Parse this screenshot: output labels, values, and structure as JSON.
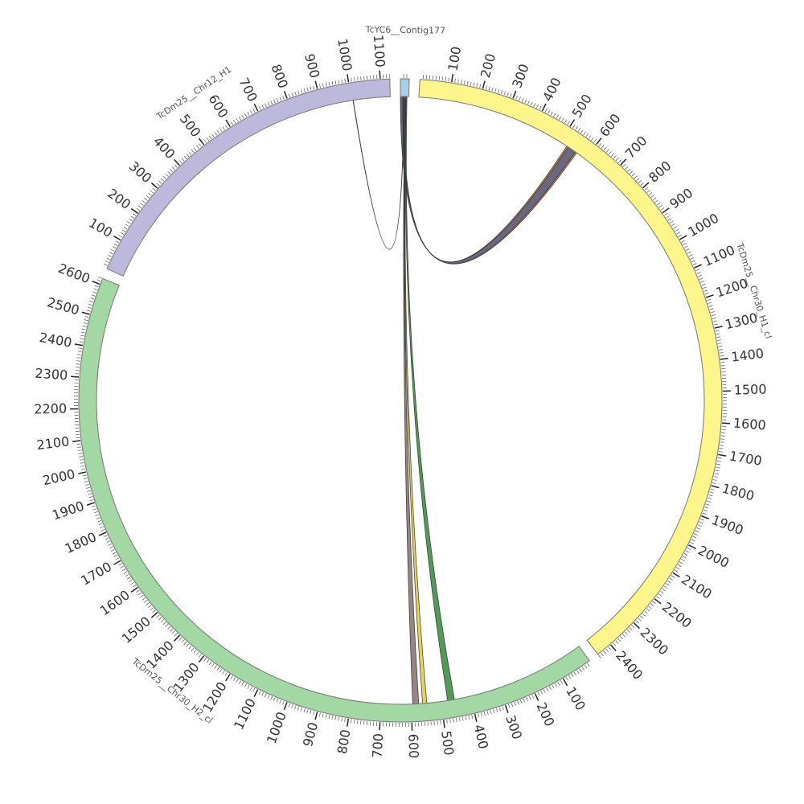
{
  "chart_data": {
    "type": "circos",
    "segments": [
      {
        "name": "TcYC6__Contig177",
        "length": 28,
        "color": "#a9d0e4",
        "major_ticks": [],
        "minor_tick_step": 10
      },
      {
        "name": "TcDm25__Chr30_H1_cl",
        "length": 2450,
        "color": "#fdf68c",
        "major_ticks": [
          100,
          200,
          300,
          400,
          500,
          600,
          700,
          800,
          900,
          1000,
          1100,
          1200,
          1300,
          1400,
          1500,
          1600,
          1700,
          1800,
          1900,
          2000,
          2100,
          2200,
          2300,
          2400
        ],
        "minor_tick_step": 10
      },
      {
        "name": "TcDm25__Chr30_H2_cl",
        "length": 2620,
        "color": "#a3d8a4",
        "major_ticks": [
          100,
          200,
          300,
          400,
          500,
          600,
          700,
          800,
          900,
          1000,
          1100,
          1200,
          1300,
          1400,
          1500,
          1600,
          1700,
          1800,
          1900,
          2000,
          2100,
          2200,
          2300,
          2400,
          2500,
          2600
        ],
        "minor_tick_step": 10
      },
      {
        "name": "TcDm25__Chr12_H1",
        "length": 1130,
        "color": "#bdb9dc",
        "major_ticks": [
          100,
          200,
          300,
          400,
          500,
          600,
          700,
          800,
          900,
          1000,
          1100
        ],
        "minor_tick_step": 10
      }
    ],
    "links": [
      {
        "source": "TcYC6__Contig177",
        "source_start": 2,
        "source_end": 10,
        "target": "TcDm25__Chr30_H1_cl",
        "target_start": 525,
        "target_end": 565,
        "color": "#e0783a"
      },
      {
        "source": "TcYC6__Contig177",
        "source_start": 0,
        "source_end": 8,
        "target": "TcDm25__Chr30_H1_cl",
        "target_start": 530,
        "target_end": 560,
        "color": "#5b6584"
      },
      {
        "source": "TcYC6__Contig177",
        "source_start": 12,
        "source_end": 13,
        "target": "TcDm25__Chr12_H1",
        "target_start": 1005,
        "target_end": 1006,
        "color": "#000000"
      },
      {
        "source": "TcYC6__Contig177",
        "source_start": 14,
        "source_end": 17,
        "target": "TcDm25__Chr30_H2_cl",
        "target_start": 575,
        "target_end": 595,
        "color": "#8c7776"
      },
      {
        "source": "TcYC6__Contig177",
        "source_start": 17,
        "source_end": 19,
        "target": "TcDm25__Chr30_H2_cl",
        "target_start": 548,
        "target_end": 562,
        "color": "#e2cf43"
      },
      {
        "source": "TcYC6__Contig177",
        "source_start": 19,
        "source_end": 22,
        "target": "TcDm25__Chr30_H2_cl",
        "target_start": 455,
        "target_end": 478,
        "color": "#3f8f46"
      }
    ]
  }
}
